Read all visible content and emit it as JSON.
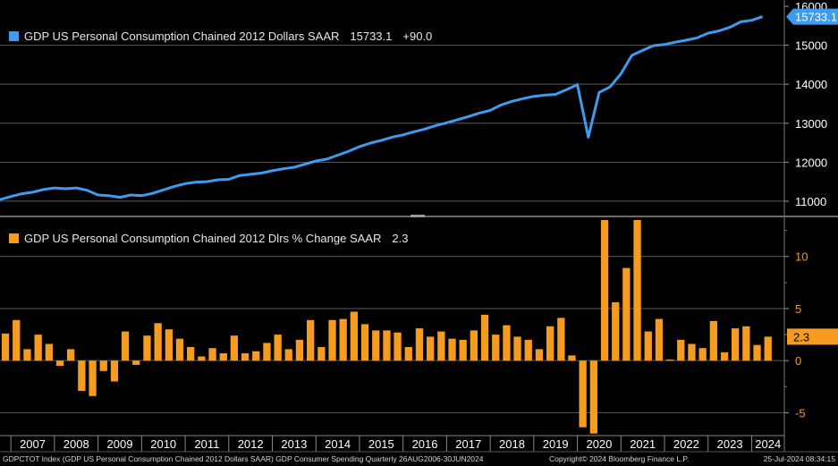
{
  "colors": {
    "background": "#000000",
    "line": "#3d9bf0",
    "bar": "#f59b1f",
    "grid": "#5a5a5a",
    "axis_text": "#ffffff",
    "bar_axis_text": "#f59b1f",
    "label_box_text": "#000000"
  },
  "top_legend": {
    "label": "GDP US Personal Consumption Chained 2012 Dollars SAAR",
    "value": "15733.1",
    "change": "+90.0"
  },
  "bottom_legend": {
    "label": "GDP US Personal Consumption Chained 2012 Dlrs % Change SAAR",
    "value": "2.3"
  },
  "footer": {
    "left": "GDPCTOT Index (GDP US Personal Consumption Chained 2012 Dollars SAAR) GDP Consumer Spending  Quarterly 26AUG2006-30JUN2024",
    "center": "Copyright© 2024 Bloomberg Finance L.P.",
    "right": "25-Jul-2024 08:34:15"
  },
  "chart_data": [
    {
      "type": "line",
      "title": "GDP US Personal Consumption Chained 2012 Dollars SAAR",
      "x_range": [
        2006.75,
        2024.75
      ],
      "ylim": [
        10700,
        16000
      ],
      "yticks": [
        11000,
        12000,
        13000,
        14000,
        15000,
        16000
      ],
      "last_value_label": "15733.1",
      "series": [
        {
          "name": "GDPCTOT",
          "x": [
            2006.75,
            2007.0,
            2007.25,
            2007.5,
            2007.75,
            2008.0,
            2008.25,
            2008.5,
            2008.75,
            2009.0,
            2009.25,
            2009.5,
            2009.75,
            2010.0,
            2010.25,
            2010.5,
            2010.75,
            2011.0,
            2011.25,
            2011.5,
            2011.75,
            2012.0,
            2012.25,
            2012.5,
            2012.75,
            2013.0,
            2013.25,
            2013.5,
            2013.75,
            2014.0,
            2014.25,
            2014.5,
            2014.75,
            2015.0,
            2015.25,
            2015.5,
            2015.75,
            2016.0,
            2016.25,
            2016.5,
            2016.75,
            2017.0,
            2017.25,
            2017.5,
            2017.75,
            2018.0,
            2018.25,
            2018.5,
            2018.75,
            2019.0,
            2019.25,
            2019.5,
            2019.75,
            2020.0,
            2020.25,
            2020.5,
            2020.75,
            2021.0,
            2021.25,
            2021.5,
            2021.75,
            2022.0,
            2022.25,
            2022.5,
            2022.75,
            2023.0,
            2023.25,
            2023.5,
            2023.75,
            2024.0,
            2024.25
          ],
          "values": [
            11040,
            11120,
            11190,
            11230,
            11300,
            11340,
            11320,
            11340,
            11280,
            11160,
            11140,
            11100,
            11160,
            11140,
            11200,
            11290,
            11380,
            11450,
            11490,
            11500,
            11550,
            11560,
            11660,
            11690,
            11720,
            11780,
            11830,
            11870,
            11950,
            12030,
            12080,
            12180,
            12280,
            12400,
            12490,
            12560,
            12640,
            12700,
            12780,
            12850,
            12940,
            13010,
            13090,
            13170,
            13260,
            13330,
            13470,
            13560,
            13630,
            13690,
            13720,
            13740,
            13860,
            13990,
            12640,
            13790,
            13930,
            14270,
            14740,
            14870,
            14990,
            15020,
            15080,
            15130,
            15190,
            15310,
            15370,
            15460,
            15600,
            15640,
            15733.1
          ]
        }
      ]
    },
    {
      "type": "bar",
      "title": "GDP US Personal Consumption Chained 2012 Dlrs % Change SAAR",
      "x_range": [
        2006.75,
        2024.75
      ],
      "ylim": [
        -7.2,
        13.5
      ],
      "yticks": [
        -5,
        0,
        5,
        10
      ],
      "last_value_label": "2.3",
      "series": [
        {
          "name": "% Change SAAR",
          "x": [
            2006.75,
            2007.0,
            2007.25,
            2007.5,
            2007.75,
            2008.0,
            2008.25,
            2008.5,
            2008.75,
            2009.0,
            2009.25,
            2009.5,
            2009.75,
            2010.0,
            2010.25,
            2010.5,
            2010.75,
            2011.0,
            2011.25,
            2011.5,
            2011.75,
            2012.0,
            2012.25,
            2012.5,
            2012.75,
            2013.0,
            2013.25,
            2013.5,
            2013.75,
            2014.0,
            2014.25,
            2014.5,
            2014.75,
            2015.0,
            2015.25,
            2015.5,
            2015.75,
            2016.0,
            2016.25,
            2016.5,
            2016.75,
            2017.0,
            2017.25,
            2017.5,
            2017.75,
            2018.0,
            2018.25,
            2018.5,
            2018.75,
            2019.0,
            2019.25,
            2019.5,
            2019.75,
            2020.0,
            2020.25,
            2020.5,
            2020.75,
            2021.0,
            2021.25,
            2021.5,
            2021.75,
            2022.0,
            2022.25,
            2022.5,
            2022.75,
            2023.0,
            2023.25,
            2023.5,
            2023.75,
            2024.0,
            2024.25
          ],
          "values": [
            2.6,
            3.9,
            1.1,
            2.5,
            1.6,
            -0.5,
            1.1,
            -2.9,
            -3.4,
            -1.0,
            -2.0,
            2.8,
            -0.4,
            2.4,
            3.6,
            3.0,
            2.1,
            1.3,
            0.4,
            1.2,
            0.7,
            2.4,
            0.7,
            0.9,
            1.7,
            2.5,
            1.1,
            2.0,
            3.9,
            1.3,
            3.9,
            4.0,
            4.7,
            3.5,
            2.9,
            2.9,
            2.7,
            1.3,
            3.1,
            2.3,
            2.8,
            2.1,
            2.0,
            2.9,
            4.4,
            2.5,
            3.4,
            2.3,
            2.0,
            1.1,
            3.3,
            4.1,
            0.5,
            -6.4,
            -7.0,
            13.5,
            5.6,
            8.9,
            13.5,
            2.8,
            4.0,
            0.1,
            2.0,
            1.6,
            1.2,
            3.8,
            0.8,
            3.1,
            3.3,
            1.5,
            2.3
          ]
        }
      ]
    }
  ],
  "x_axis": {
    "year_labels": [
      "2007",
      "2008",
      "2009",
      "2010",
      "2011",
      "2012",
      "2013",
      "2014",
      "2015",
      "2016",
      "2017",
      "2018",
      "2019",
      "2020",
      "2021",
      "2022",
      "2023",
      "2024"
    ]
  }
}
